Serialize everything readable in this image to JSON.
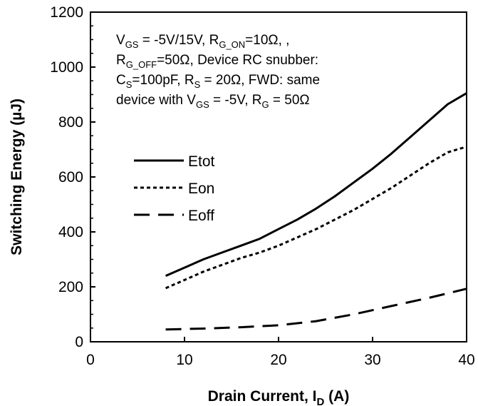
{
  "chart_data": {
    "type": "line",
    "xlabel": {
      "main": "Drain Current, I",
      "sub": "D",
      "unit": " (A)"
    },
    "ylabel": "Switching Energy (µJ)",
    "xlim": [
      0,
      40
    ],
    "ylim": [
      0,
      1200
    ],
    "xticks": [
      0,
      10,
      20,
      30,
      40
    ],
    "yticks": [
      0,
      200,
      400,
      600,
      800,
      1000,
      1200
    ],
    "grid": false,
    "legend_position": "center-left",
    "annotation": [
      [
        {
          "t": "V"
        },
        {
          "t": "GS",
          "sub": true
        },
        {
          "t": " = -5V/15V, R"
        },
        {
          "t": "G_ON",
          "sub": true
        },
        {
          "t": "=10Ω, ,"
        }
      ],
      [
        {
          "t": "R"
        },
        {
          "t": "G_OFF",
          "sub": true
        },
        {
          "t": "=50Ω, Device RC snubber:"
        }
      ],
      [
        {
          "t": "C"
        },
        {
          "t": "S",
          "sub": true
        },
        {
          "t": "=100pF,    R"
        },
        {
          "t": "S",
          "sub": true
        },
        {
          "t": " = 20Ω, FWD: same"
        }
      ],
      [
        {
          "t": "device with V"
        },
        {
          "t": "GS",
          "sub": true
        },
        {
          "t": " = -5V, R"
        },
        {
          "t": "G",
          "sub": true
        },
        {
          "t": " = 50Ω"
        }
      ]
    ],
    "series": [
      {
        "name": "Etot",
        "style": "solid",
        "x": [
          8,
          10,
          12,
          14,
          16,
          18,
          20,
          22,
          24,
          26,
          28,
          30,
          32,
          34,
          36,
          38,
          40
        ],
        "y": [
          240,
          270,
          300,
          325,
          350,
          375,
          410,
          445,
          485,
          530,
          580,
          630,
          685,
          745,
          805,
          865,
          905
        ]
      },
      {
        "name": "Eon",
        "style": "dotted",
        "x": [
          8,
          10,
          12,
          14,
          16,
          18,
          20,
          22,
          24,
          26,
          28,
          30,
          32,
          34,
          36,
          38,
          40
        ],
        "y": [
          195,
          225,
          255,
          280,
          305,
          325,
          350,
          380,
          410,
          445,
          480,
          520,
          560,
          605,
          650,
          690,
          710
        ]
      },
      {
        "name": "Eoff",
        "style": "dashed",
        "x": [
          8,
          12,
          16,
          20,
          24,
          28,
          32,
          36,
          40
        ],
        "y": [
          45,
          48,
          53,
          60,
          75,
          100,
          130,
          160,
          193
        ]
      }
    ]
  }
}
